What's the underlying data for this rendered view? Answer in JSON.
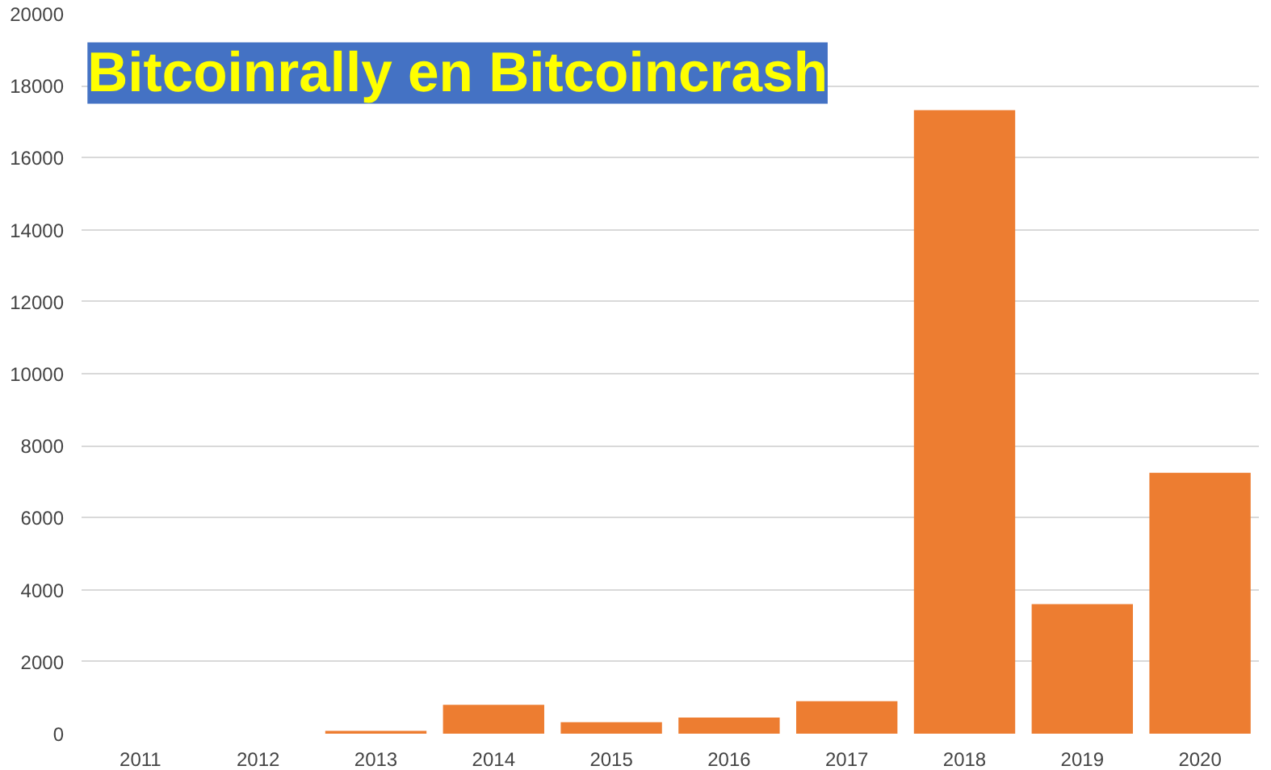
{
  "chart_data": {
    "type": "bar",
    "title": "Bitcoinrally en Bitcoincrash",
    "categories": [
      "2011",
      "2012",
      "2013",
      "2014",
      "2015",
      "2016",
      "2017",
      "2018",
      "2019",
      "2020"
    ],
    "values": [
      0,
      0,
      80,
      800,
      320,
      450,
      900,
      17320,
      3600,
      7250
    ],
    "color": "#ed7d31",
    "ylim": [
      0,
      20000
    ],
    "yticks": [
      0,
      2000,
      4000,
      6000,
      8000,
      10000,
      12000,
      14000,
      16000,
      18000,
      20000
    ],
    "grid": "y"
  }
}
